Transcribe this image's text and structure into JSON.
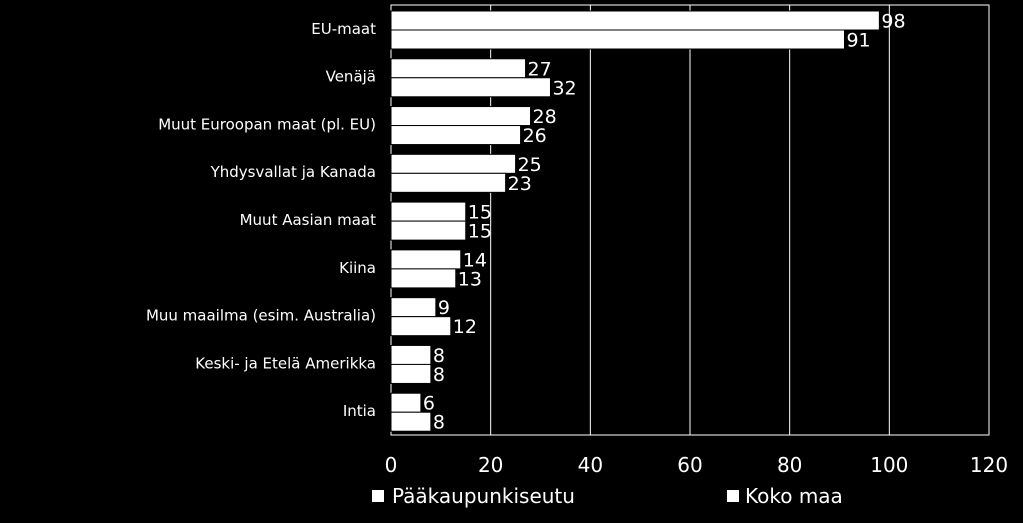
{
  "chart_data": {
    "type": "bar",
    "orientation": "horizontal",
    "categories": [
      "EU-maat",
      "Venäjä",
      "Muut Euroopan maat (pl. EU)",
      "Yhdysvallat ja Kanada",
      "Muut Aasian maat",
      "Kiina",
      "Muu maailma (esim. Australia)",
      "Keski- ja Etelä Amerikka",
      "Intia"
    ],
    "series": [
      {
        "name": "Pääkaupunkiseutu",
        "values": [
          98,
          27,
          28,
          25,
          15,
          14,
          9,
          8,
          6
        ]
      },
      {
        "name": "Koko maa",
        "values": [
          91,
          32,
          26,
          23,
          15,
          13,
          12,
          8,
          8
        ]
      }
    ],
    "xlim": [
      0,
      120
    ],
    "xticks": [
      0,
      20,
      40,
      60,
      80,
      100,
      120
    ],
    "grid": true,
    "legend": "bottom",
    "data_labels": true,
    "colors": {
      "background": "#000000",
      "bar": "#ffffff",
      "bar_outline": "#000000",
      "grid": "#ffffff",
      "text": "#ffffff"
    }
  }
}
